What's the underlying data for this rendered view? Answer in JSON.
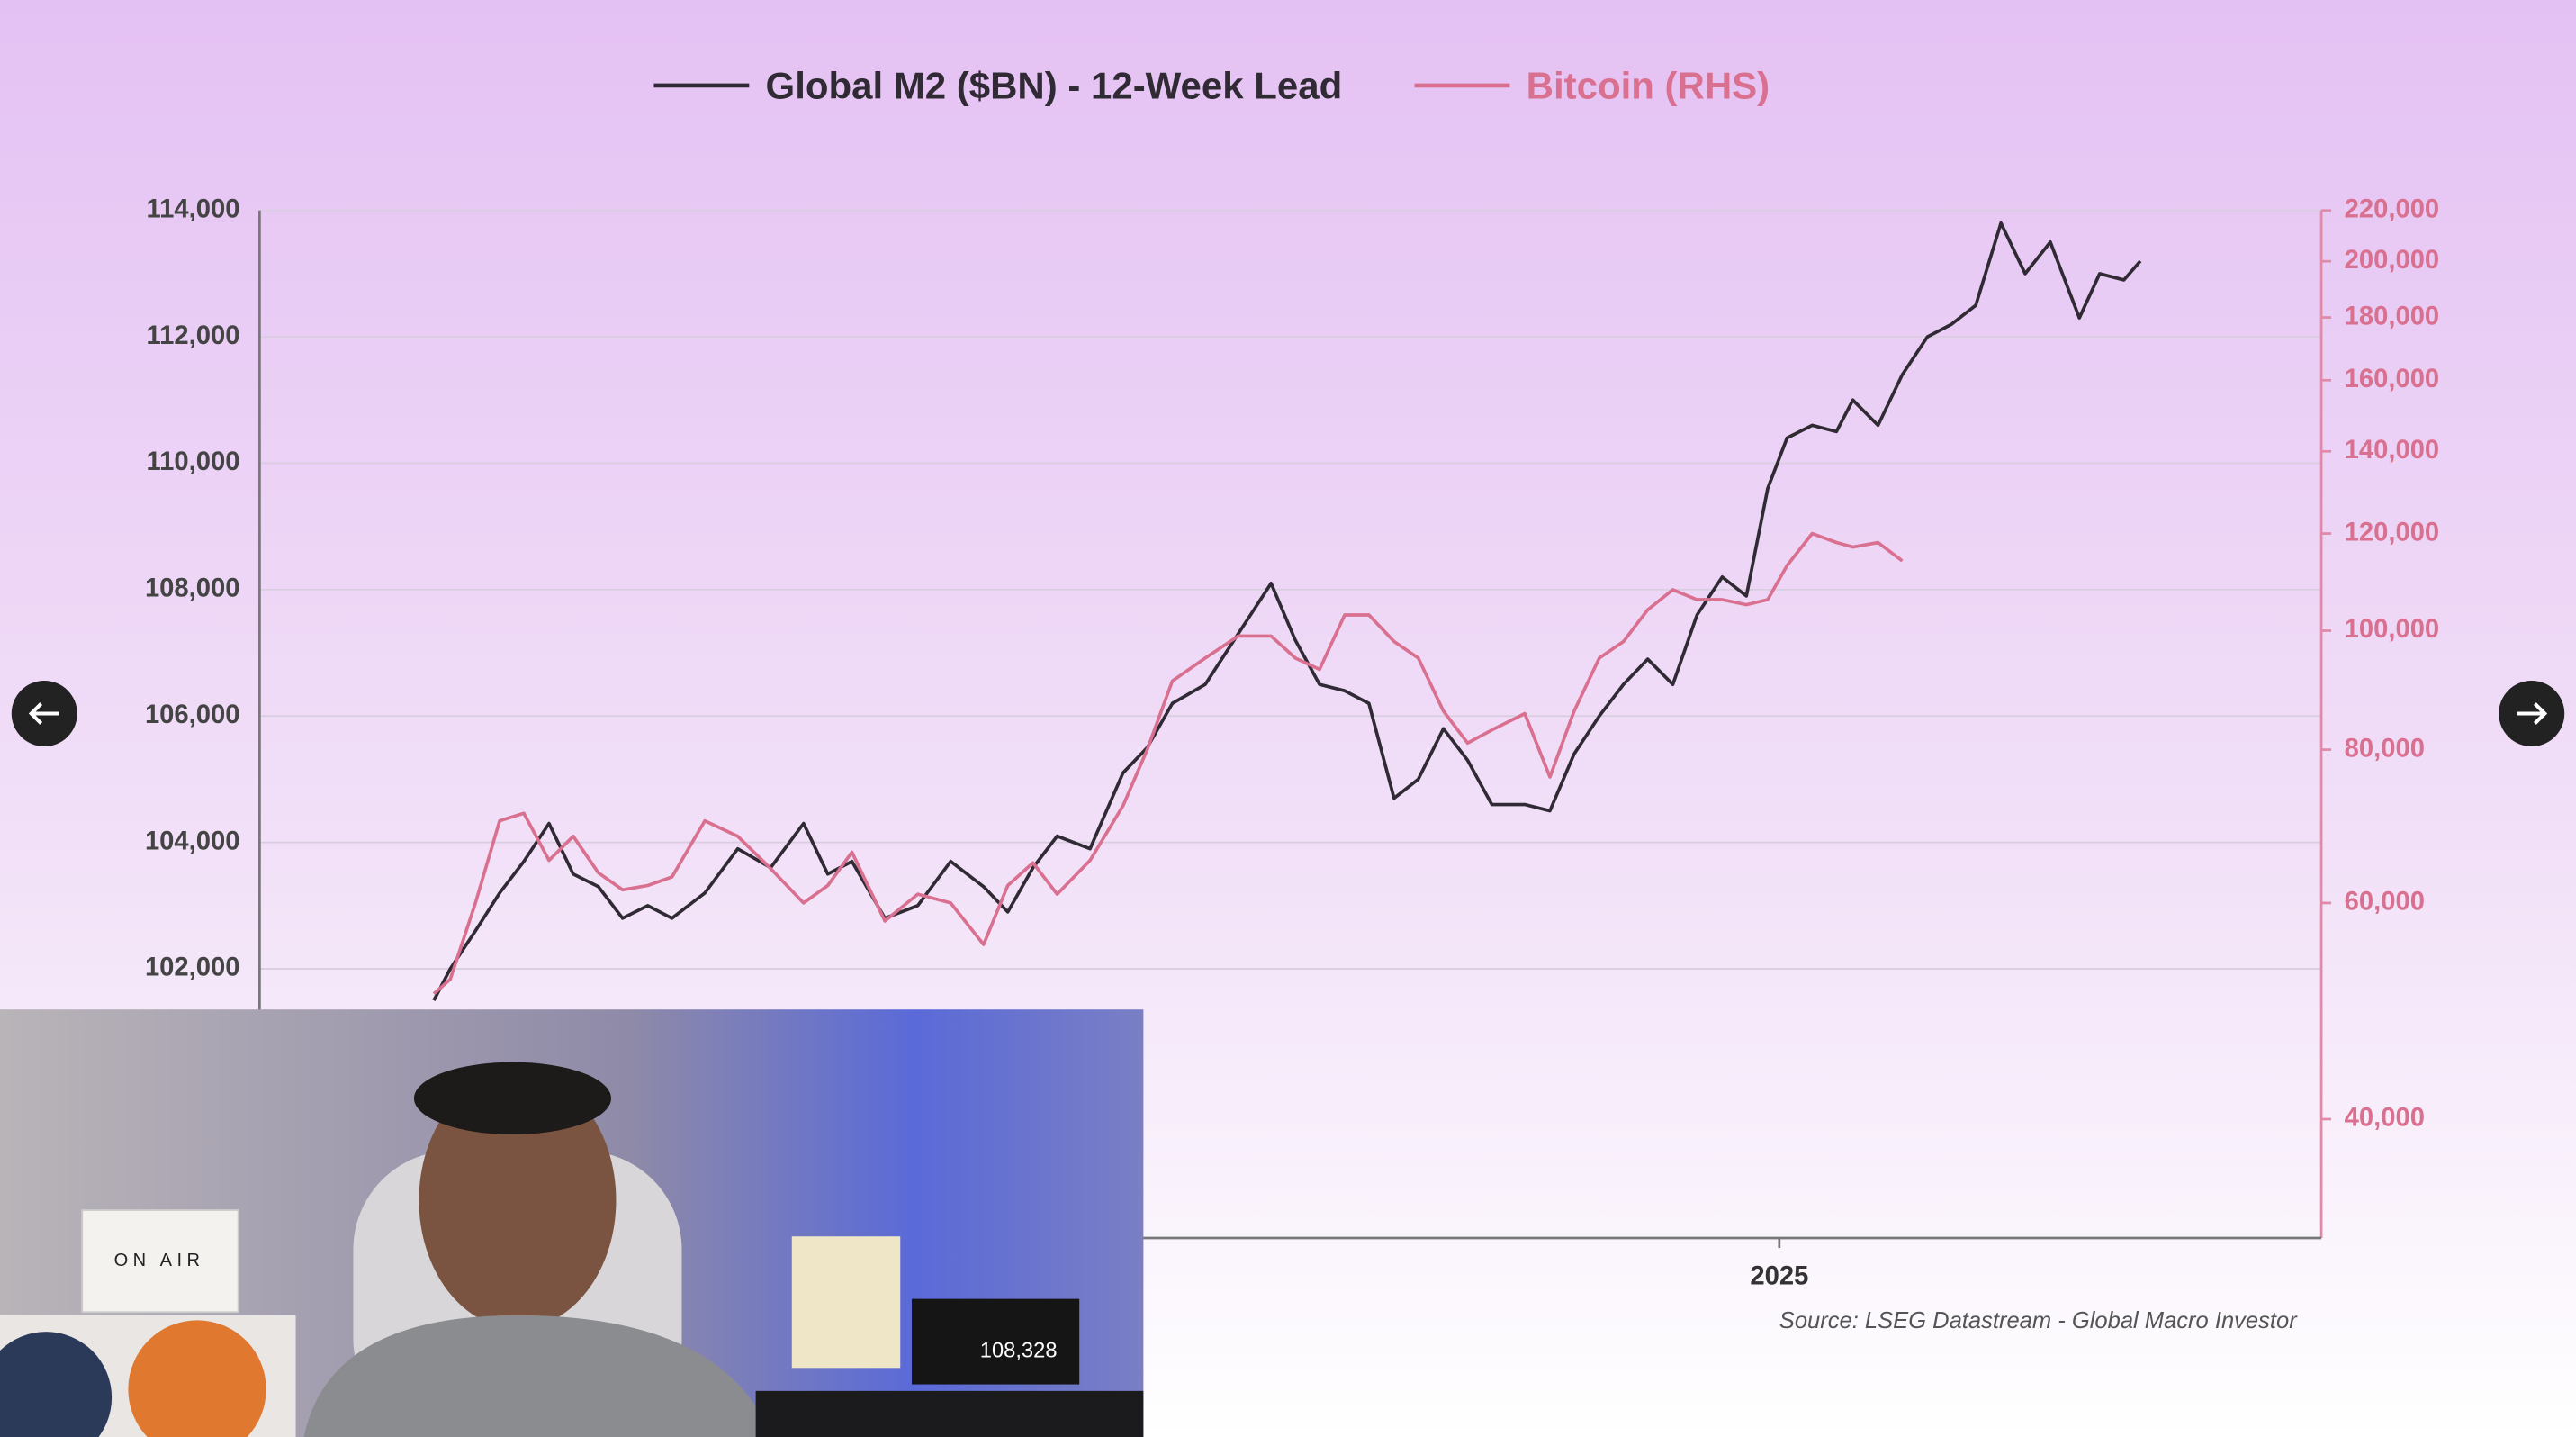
{
  "chart_data": {
    "type": "line",
    "x": [
      2023.61,
      2023.627,
      2023.653,
      2023.678,
      2023.703,
      2023.729,
      2023.754,
      2023.78,
      2023.805,
      2023.831,
      2023.856,
      2023.89,
      2023.924,
      2023.958,
      2023.992,
      2024.017,
      2024.042,
      2024.076,
      2024.11,
      2024.144,
      2024.178,
      2024.203,
      2024.229,
      2024.254,
      2024.288,
      2024.322,
      2024.347,
      2024.373,
      2024.407,
      2024.441,
      2024.475,
      2024.5,
      2024.525,
      2024.551,
      2024.576,
      2024.602,
      2024.627,
      2024.653,
      2024.678,
      2024.703,
      2024.737,
      2024.763,
      2024.788,
      2024.814,
      2024.839,
      2024.864,
      2024.89,
      2024.915,
      2024.941,
      2024.966,
      2024.988,
      2025.008,
      2025.034,
      2025.059,
      2025.076,
      2025.102,
      2025.127,
      2025.153,
      2025.178,
      2025.203,
      2025.229,
      2025.254,
      2025.28,
      2025.31,
      2025.331,
      2025.356,
      2025.373
    ],
    "xlim": [
      2023.43,
      2025.56
    ],
    "xticks": [
      {
        "value": 2025,
        "label": "2025"
      }
    ],
    "ylim": [
      97740,
      114000
    ],
    "yticks": [
      {
        "value": 102000,
        "label": "102,000"
      },
      {
        "value": 104000,
        "label": "104,000"
      },
      {
        "value": 106000,
        "label": "106,000"
      },
      {
        "value": 108000,
        "label": "108,000"
      },
      {
        "value": 110000,
        "label": "110,000"
      },
      {
        "value": 112000,
        "label": "112,000"
      },
      {
        "value": 114000,
        "label": "114,000"
      }
    ],
    "y2lim": [
      32000,
      220000
    ],
    "y2log": true,
    "y2ticks": [
      {
        "value": 40000,
        "label": "40,000"
      },
      {
        "value": 60000,
        "label": "60,000"
      },
      {
        "value": 80000,
        "label": "80,000"
      },
      {
        "value": 100000,
        "label": "100,000"
      },
      {
        "value": 120000,
        "label": "120,000"
      },
      {
        "value": 140000,
        "label": "140,000"
      },
      {
        "value": 160000,
        "label": "160,000"
      },
      {
        "value": 180000,
        "label": "180,000"
      },
      {
        "value": 200000,
        "label": "200,000"
      },
      {
        "value": 220000,
        "label": "220,000"
      }
    ],
    "grid": true,
    "series": [
      {
        "name": "Global M2 ($BN) - 12-Week Lead",
        "color": "#2f2a33",
        "values": [
          101500,
          102000,
          102600,
          103200,
          103700,
          104300,
          103500,
          103300,
          102800,
          103000,
          102800,
          103200,
          103900,
          103600,
          104300,
          103500,
          103700,
          102800,
          103000,
          103700,
          103300,
          102900,
          103600,
          104100,
          103900,
          105100,
          105500,
          106200,
          106500,
          107300,
          108100,
          107200,
          106500,
          106400,
          106200,
          104700,
          105000,
          105800,
          105300,
          104600,
          104600,
          104500,
          105400,
          106000,
          106500,
          106900,
          106500,
          107600,
          108200,
          107900,
          109600,
          110400,
          110600,
          110500,
          111000,
          110600,
          111400,
          112000,
          112200,
          112500,
          113800,
          113000,
          113500,
          112300,
          113000,
          112900,
          113200
        ]
      },
      {
        "name": "Bitcoin (RHS)",
        "color": "#d9708f",
        "axis": "y2",
        "values": [
          50600,
          52000,
          60000,
          70000,
          71000,
          65000,
          68000,
          63500,
          61500,
          62000,
          63000,
          70000,
          68000,
          64000,
          60000,
          62000,
          66000,
          58000,
          61000,
          60000,
          55500,
          62000,
          64700,
          61000,
          65000,
          72000,
          80000,
          91000,
          95000,
          99000,
          99000,
          95000,
          93000,
          103000,
          103000,
          98000,
          95000,
          86000,
          81000,
          83000,
          85600,
          76000,
          86000,
          95000,
          98000,
          104000,
          108000,
          106000,
          106000,
          105000,
          106000,
          113000,
          120000,
          118000,
          117000,
          118000,
          114000,
          null,
          null,
          null,
          null,
          null,
          null,
          null,
          null,
          null,
          null
        ]
      }
    ],
    "source": "Source: LSEG Datastream - Global Macro Investor"
  },
  "overlay": {
    "sign": "ON AIR",
    "ticker": "108,328"
  }
}
